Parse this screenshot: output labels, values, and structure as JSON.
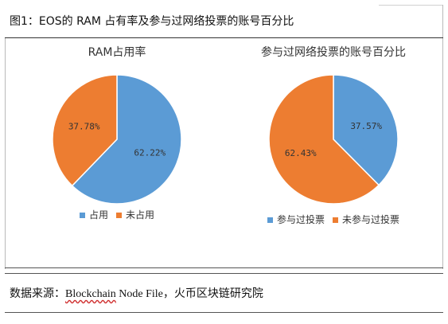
{
  "figure_title": "图1：EOS的 RAM 占有率及参与过网络投票的账号百分比",
  "source": {
    "prefix": "数据来源：",
    "name": "Blockchain",
    "rest": " Node File，火币区块链研究院"
  },
  "colors": {
    "blue": "#5b9bd5",
    "orange": "#ed7d31"
  },
  "chart_data": [
    {
      "type": "pie",
      "title": "RAM占用率",
      "slices": [
        {
          "label": "占用",
          "value": 62.22,
          "display": "62.22%",
          "color": "#5b9bd5"
        },
        {
          "label": "未占用",
          "value": 37.78,
          "display": "37.78%",
          "color": "#ed7d31"
        }
      ],
      "legend": [
        "占用",
        "未占用"
      ],
      "legend_position": "bottom"
    },
    {
      "type": "pie",
      "title": "参与过网络投票的账号百分比",
      "slices": [
        {
          "label": "参与过投票",
          "value": 37.57,
          "display": "37.57%",
          "color": "#5b9bd5"
        },
        {
          "label": "未参与过投票",
          "value": 62.43,
          "display": "62.43%",
          "color": "#ed7d31"
        }
      ],
      "legend": [
        "参与过投票",
        "未参与过投票"
      ],
      "legend_position": "bottom"
    }
  ]
}
